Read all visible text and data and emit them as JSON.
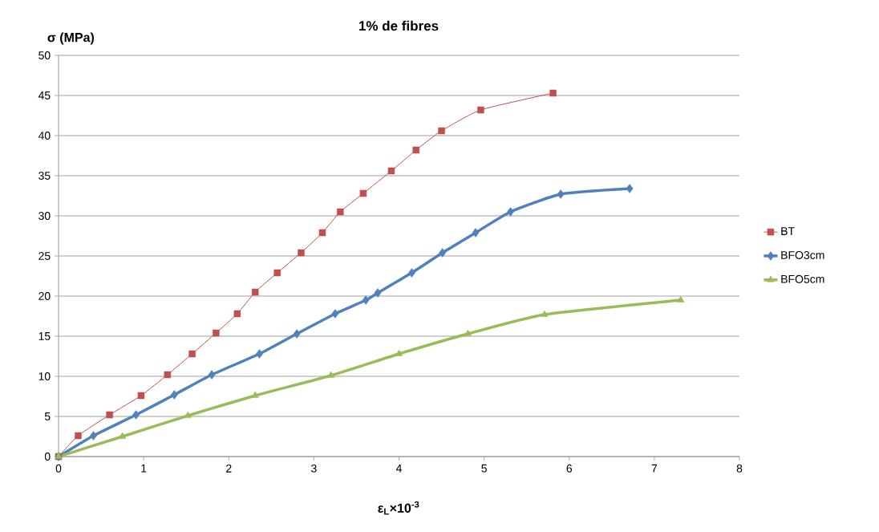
{
  "chart_data": {
    "type": "line",
    "title": "1% de fibres",
    "xlabel": "ε$_{L}$×10$^{-3}$",
    "ylabel": "σ (MPa)",
    "xlim": [
      0,
      8
    ],
    "xticks": [
      0,
      1,
      2,
      3,
      4,
      5,
      6,
      7,
      8
    ],
    "ylim": [
      0,
      50
    ],
    "yticks": [
      0,
      5,
      10,
      15,
      20,
      25,
      30,
      35,
      40,
      45,
      50
    ],
    "grid": "y",
    "legend": "right",
    "line_style": "solid",
    "series": [
      {
        "name": "BT",
        "color": "#c0504d",
        "marker": "square",
        "x": [
          0,
          0.23,
          0.6,
          0.97,
          1.28,
          1.57,
          1.85,
          2.1,
          2.31,
          2.57,
          2.85,
          3.1,
          3.31,
          3.58,
          3.91,
          4.2,
          4.5,
          4.96,
          5.81
        ],
        "values": [
          0,
          2.6,
          5.2,
          7.6,
          10.2,
          12.8,
          15.4,
          17.8,
          20.5,
          22.9,
          25.4,
          27.9,
          30.5,
          32.8,
          35.6,
          38.2,
          40.6,
          43.2,
          45.3
        ]
      },
      {
        "name": "BFO3cm",
        "color": "#4f81bd",
        "marker": "diamond",
        "x": [
          0,
          0.41,
          0.91,
          1.36,
          1.8,
          2.36,
          2.8,
          3.25,
          3.61,
          3.75,
          4.15,
          4.51,
          4.9,
          5.31,
          5.9,
          6.71
        ],
        "values": [
          0,
          2.6,
          5.2,
          7.7,
          10.2,
          12.8,
          15.3,
          17.8,
          19.5,
          20.4,
          22.9,
          25.4,
          27.9,
          30.5,
          32.7,
          33.4
        ]
      },
      {
        "name": "BFO5cm",
        "color": "#9bbb59",
        "marker": "triangle",
        "x": [
          0,
          0.75,
          1.52,
          2.31,
          3.2,
          4.0,
          4.81,
          5.71,
          7.31
        ],
        "values": [
          0,
          2.5,
          5.1,
          7.6,
          10.1,
          12.8,
          15.3,
          17.7,
          19.5
        ]
      }
    ]
  }
}
